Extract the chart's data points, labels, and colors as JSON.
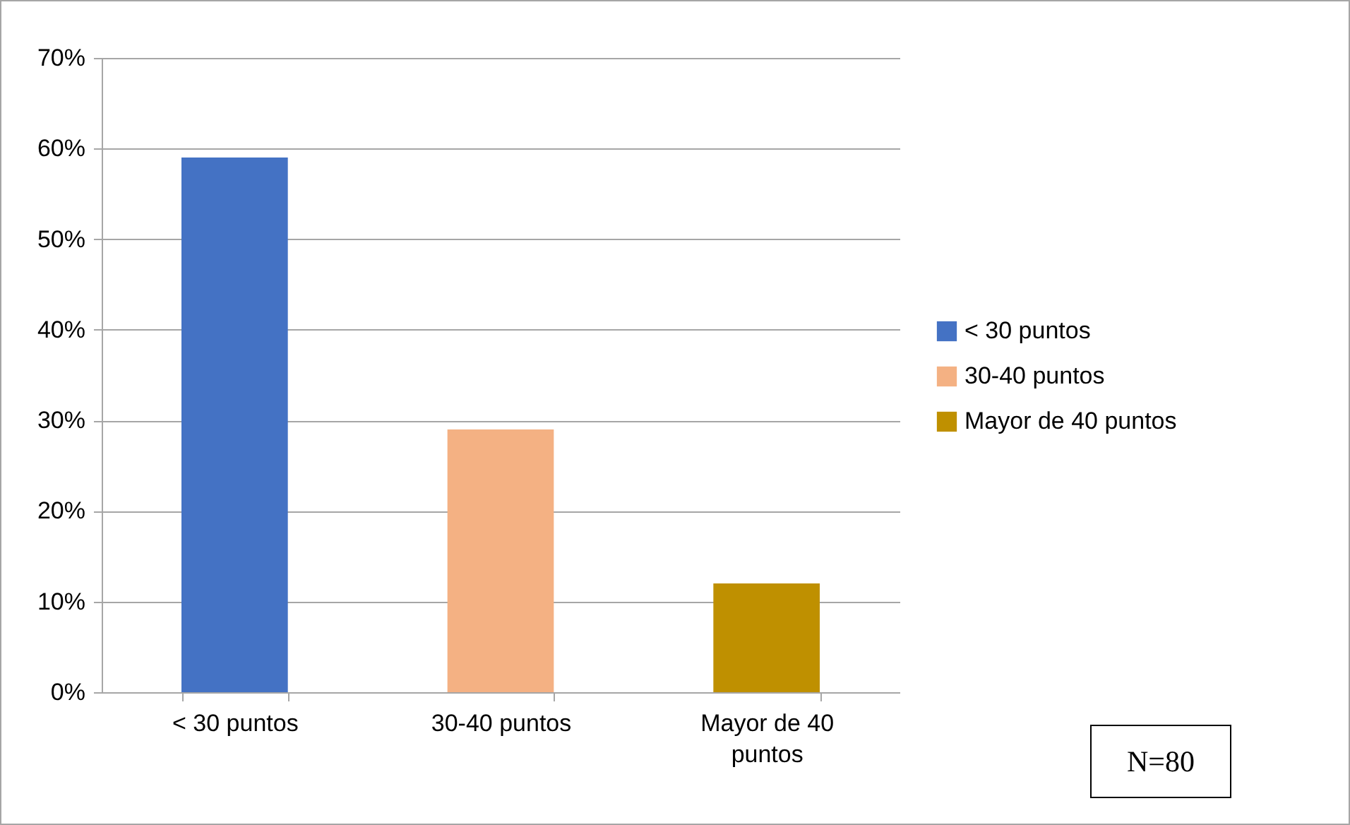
{
  "chart_data": {
    "type": "bar",
    "categories": [
      "< 30 puntos",
      "30-40 puntos",
      "Mayor de 40 puntos"
    ],
    "series": [
      {
        "name": "< 30 puntos",
        "color": "#4472c4",
        "values": [
          59,
          null,
          null
        ]
      },
      {
        "name": "30-40 puntos",
        "color": "#f4b183",
        "values": [
          null,
          29,
          null
        ]
      },
      {
        "name": "Mayor de 40 puntos",
        "color": "#bf9000",
        "values": [
          null,
          null,
          12
        ]
      }
    ],
    "ylim": [
      0,
      70
    ],
    "yticks": [
      {
        "value": 0,
        "label": "0%"
      },
      {
        "value": 10,
        "label": "10%"
      },
      {
        "value": 20,
        "label": "20%"
      },
      {
        "value": 30,
        "label": "30%"
      },
      {
        "value": 40,
        "label": "40%"
      },
      {
        "value": 50,
        "label": "50%"
      },
      {
        "value": 60,
        "label": "60%"
      },
      {
        "value": 70,
        "label": "70%"
      }
    ],
    "grid": "y",
    "legend": "right",
    "annotations": [
      "N=80"
    ]
  }
}
